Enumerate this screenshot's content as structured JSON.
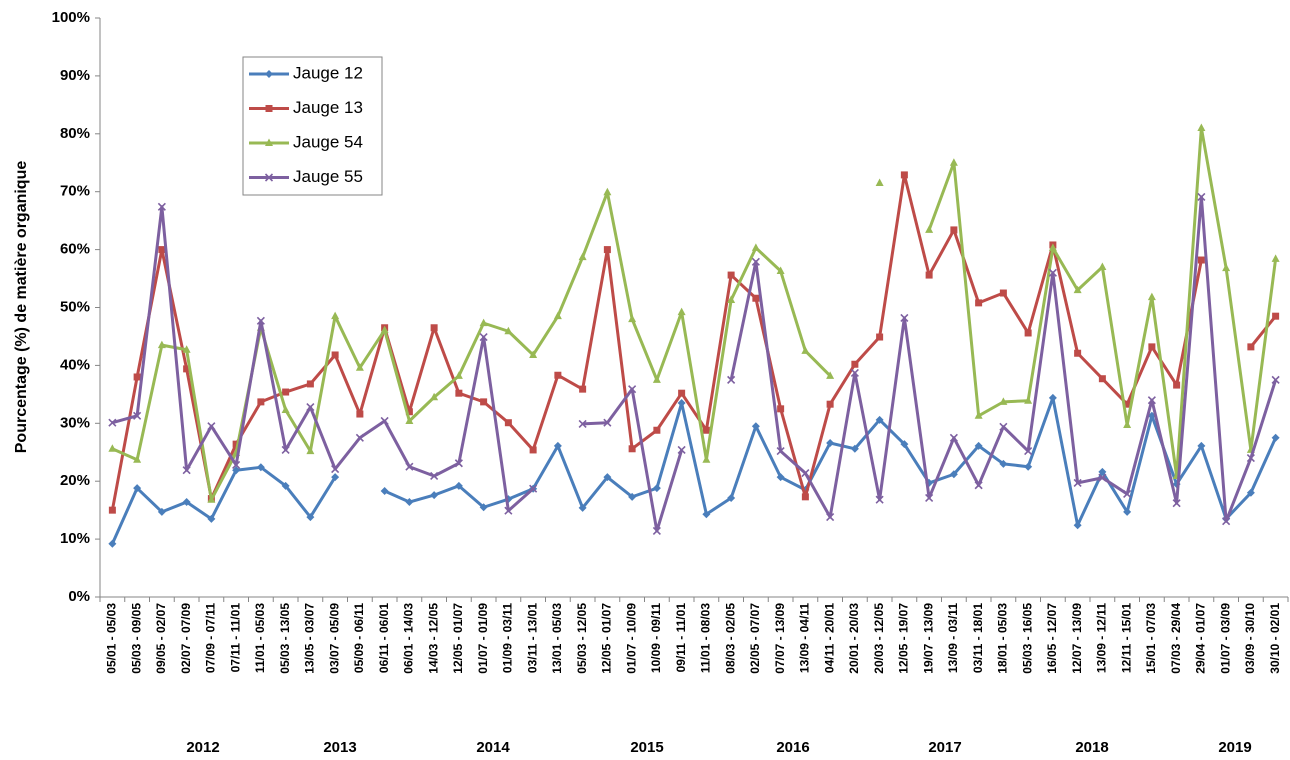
{
  "chart_data": {
    "type": "line",
    "y_label": "Pourcentage (%) de matière organique",
    "categories": [
      "05/01 - 05/03",
      "05/03 - 09/05",
      "09/05 - 02/07",
      "02/07 - 07/09",
      "07/09 - 07/11",
      "07/11 - 11/01",
      "11/01 - 05/03",
      "05/03 - 13/05",
      "13/05 - 03/07",
      "03/07 - 05/09",
      "05/09 - 06/11",
      "06/11 - 06/01",
      "06/01 - 14/03",
      "14/03 - 12/05",
      "12/05 - 01/07",
      "01/07 - 01/09",
      "01/09 - 03/11",
      "03/11 - 13/01",
      "13/01 - 05/03",
      "05/03 - 12/05",
      "12/05 - 01/07",
      "01/07 - 10/09",
      "10/09 - 09/11",
      "09/11 - 11/01",
      "11/01 - 08/03",
      "08/03 - 02/05",
      "02/05 - 07/07",
      "07/07 - 13/09",
      "13/09 - 04/11",
      "04/11 - 20/01",
      "20/01 - 20/03",
      "20/03 - 12/05",
      "12/05 - 19/07",
      "19/07 - 13/09",
      "13/09 - 03/11",
      "03/11 - 18/01",
      "18/01 - 05/03",
      "05/03 - 16/05",
      "16/05 - 12/07",
      "12/07 - 13/09",
      "13/09 - 12/11",
      "12/11 - 15/01",
      "15/01 - 07/03",
      "07/03 - 29/04",
      "29/04 - 01/07",
      "01/07 - 03/09",
      "03/09 - 30/10",
      "30/10 - 02/01"
    ],
    "groups": [
      "2012",
      "2013",
      "2014",
      "2015",
      "2016",
      "2017",
      "2018",
      "2019"
    ],
    "series": [
      {
        "name": "Jauge 12",
        "color": "#4a7ebb",
        "marker": "diamond",
        "values": [
          9.2,
          18.8,
          14.7,
          16.4,
          13.5,
          21.9,
          22.4,
          19.2,
          13.8,
          20.7,
          null,
          18.3,
          16.4,
          17.6,
          19.2,
          15.5,
          16.9,
          18.7,
          26.1,
          15.4,
          20.7,
          17.3,
          18.8,
          33.5,
          14.3,
          17.1,
          29.5,
          20.7,
          18.5,
          26.6,
          25.6,
          30.6,
          26.4,
          19.7,
          21.2,
          26.1,
          23.0,
          22.5,
          34.4,
          12.4,
          21.6,
          14.7,
          31.3,
          19.5,
          26.1,
          13.5,
          18.0,
          27.5
        ]
      },
      {
        "name": "Jauge 13",
        "color": "#be4b48",
        "marker": "square",
        "values": [
          15.0,
          38.0,
          60.0,
          39.4,
          17.0,
          26.4,
          33.7,
          35.4,
          36.8,
          41.8,
          31.6,
          46.5,
          32.0,
          46.5,
          35.2,
          33.7,
          30.1,
          25.4,
          38.3,
          35.9,
          60.0,
          25.6,
          28.8,
          35.2,
          28.8,
          55.6,
          51.6,
          32.5,
          17.3,
          33.3,
          40.2,
          44.9,
          72.9,
          55.6,
          63.4,
          50.8,
          52.5,
          45.6,
          60.8,
          42.1,
          37.7,
          33.3,
          43.2,
          36.6,
          58.2,
          null,
          43.2,
          48.5
        ]
      },
      {
        "name": "Jauge 54",
        "color": "#98b954",
        "marker": "triangle",
        "values": [
          25.6,
          23.7,
          43.5,
          42.7,
          16.8,
          24.9,
          46.5,
          32.3,
          25.2,
          48.5,
          39.6,
          46.1,
          30.4,
          34.5,
          38.2,
          47.3,
          45.9,
          41.8,
          48.5,
          58.7,
          69.9,
          48.0,
          37.5,
          49.2,
          23.7,
          51.3,
          60.3,
          56.3,
          42.5,
          38.2,
          null,
          71.5,
          null,
          63.4,
          75.0,
          31.3,
          33.7,
          33.9,
          60.3,
          53.0,
          57.0,
          29.7,
          51.8,
          20.9,
          81.0,
          56.8,
          25.4,
          58.4
        ]
      },
      {
        "name": "Jauge 55",
        "color": "#7d60a0",
        "marker": "x",
        "values": [
          30.1,
          31.3,
          67.4,
          21.9,
          29.5,
          22.8,
          47.7,
          25.4,
          32.8,
          22.1,
          27.5,
          30.4,
          22.5,
          20.9,
          23.1,
          44.9,
          14.9,
          18.7,
          null,
          29.9,
          30.1,
          35.9,
          11.4,
          25.4,
          null,
          37.5,
          57.9,
          25.2,
          21.4,
          13.8,
          38.7,
          16.8,
          48.2,
          17.1,
          27.5,
          19.3,
          29.4,
          25.2,
          56.0,
          19.7,
          20.6,
          17.8,
          34.0,
          16.2,
          69.1,
          13.1,
          24.0,
          37.5
        ]
      }
    ],
    "ylim": [
      0,
      100
    ],
    "yticks": [
      {
        "value": 0,
        "label": "0%"
      },
      {
        "value": 10,
        "label": "10%"
      },
      {
        "value": 20,
        "label": "20%"
      },
      {
        "value": 30,
        "label": "30%"
      },
      {
        "value": 40,
        "label": "40%"
      },
      {
        "value": 50,
        "label": "50%"
      },
      {
        "value": 60,
        "label": "60%"
      },
      {
        "value": 70,
        "label": "70%"
      },
      {
        "value": 80,
        "label": "80%"
      },
      {
        "value": 90,
        "label": "90%"
      },
      {
        "value": 100,
        "label": "100%"
      }
    ],
    "grid": false,
    "legend": "upper-left"
  }
}
